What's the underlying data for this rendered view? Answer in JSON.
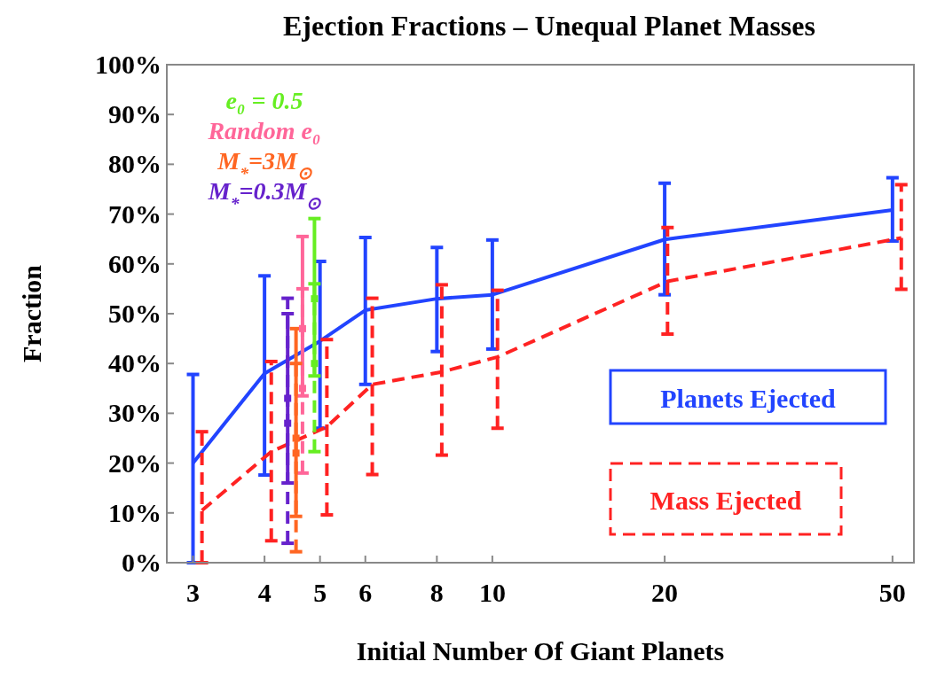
{
  "chart_data": {
    "type": "line",
    "title": "Ejection Fractions – Unequal Planet Masses",
    "xlabel": "Initial Number Of Giant Planets",
    "ylabel": "Fraction",
    "log": "x",
    "xlim": [
      2.7,
      54.5
    ],
    "xticks": [
      3,
      4,
      5,
      6,
      8,
      10,
      20,
      50
    ],
    "ylim": [
      0,
      100
    ],
    "yticks": [
      {
        "value": 0,
        "label": "0%"
      },
      {
        "value": 10,
        "label": "10%"
      },
      {
        "value": 20,
        "label": "20%"
      },
      {
        "value": 30,
        "label": "30%"
      },
      {
        "value": 40,
        "label": "40%"
      },
      {
        "value": 50,
        "label": "50%"
      },
      {
        "value": 60,
        "label": "60%"
      },
      {
        "value": 70,
        "label": "70%"
      },
      {
        "value": 80,
        "label": "80%"
      },
      {
        "value": 90,
        "label": "90%"
      },
      {
        "value": 100,
        "label": "100%"
      }
    ],
    "grid": false,
    "legend": "right",
    "marker": "none",
    "series": [
      {
        "name": "Planets Ejected",
        "color": "#2244ff",
        "line_style": "solid",
        "x": [
          3,
          4,
          5,
          6,
          8,
          10,
          20,
          50
        ],
        "values": [
          20,
          38,
          44.5,
          50.7,
          53,
          53.8,
          64.9,
          70.8
        ],
        "errors": [
          [
            0,
            37.8
          ],
          [
            17.6,
            57.6
          ],
          [
            27,
            60.5
          ],
          [
            35.8,
            65.3
          ],
          [
            42.4,
            63.3
          ],
          [
            42.9,
            64.8
          ],
          [
            53.8,
            76.2
          ],
          [
            64.6,
            77.3
          ]
        ]
      },
      {
        "name": "Mass Ejected",
        "color": "#ff2222",
        "line_style": "dashed",
        "x": [
          3.11,
          4.11,
          5.14,
          6.17,
          8.16,
          10.21,
          20.23,
          51.8
        ],
        "values": [
          10.5,
          22.3,
          27.3,
          35.8,
          38.3,
          41.3,
          56.5,
          65.2
        ],
        "errors": [
          [
            0,
            26.3
          ],
          [
            4.4,
            40.4
          ],
          [
            9.6,
            44.8
          ],
          [
            17.7,
            53.1
          ],
          [
            21.6,
            55.8
          ],
          [
            27,
            54.7
          ],
          [
            45.9,
            67.3
          ],
          [
            54.9,
            75.9
          ]
        ]
      },
      {
        "name": "e₀ = 0.5",
        "color": "#66ee22",
        "line_style": "solid",
        "marker": "square",
        "x": [
          4.89
        ],
        "values": [
          53
        ],
        "errors": [
          [
            37.5,
            69.1
          ]
        ]
      },
      {
        "color": "#66ee22",
        "line_style": "dashed",
        "marker": "square",
        "x": [
          4.89
        ],
        "values": [
          40
        ],
        "errors": [
          [
            22.3,
            56
          ]
        ]
      },
      {
        "name": "Random e₀",
        "color": "#ff6699",
        "line_style": "solid",
        "marker": "square",
        "x": [
          4.66
        ],
        "values": [
          47
        ],
        "errors": [
          [
            33.5,
            65.5
          ]
        ]
      },
      {
        "color": "#ff6699",
        "line_style": "dashed",
        "marker": "square",
        "x": [
          4.66
        ],
        "values": [
          35
        ],
        "errors": [
          [
            18,
            55
          ]
        ]
      },
      {
        "name": "M$_{*}$=3M$_{⊙}$",
        "color": "#ff6622",
        "line_style": "solid",
        "marker": "square",
        "x": [
          4.54
        ],
        "values": [
          25
        ],
        "errors": [
          [
            9.3,
            47
          ]
        ]
      },
      {
        "color": "#ff6622",
        "line_style": "dashed",
        "marker": "square",
        "x": [
          4.54
        ],
        "values": [
          22
        ],
        "errors": [
          [
            2.2,
            40
          ]
        ]
      },
      {
        "name": "M$_{*}$=0.3M$_{⊙}$",
        "color": "#6622cc",
        "line_style": "solid",
        "marker": "square",
        "x": [
          4.39
        ],
        "values": [
          33
        ],
        "errors": [
          [
            16,
            50
          ]
        ]
      },
      {
        "color": "#6622cc",
        "line_style": "dashed",
        "marker": "square",
        "x": [
          4.39
        ],
        "values": [
          28
        ],
        "errors": [
          [
            3.9,
            53.1
          ]
        ]
      }
    ]
  }
}
